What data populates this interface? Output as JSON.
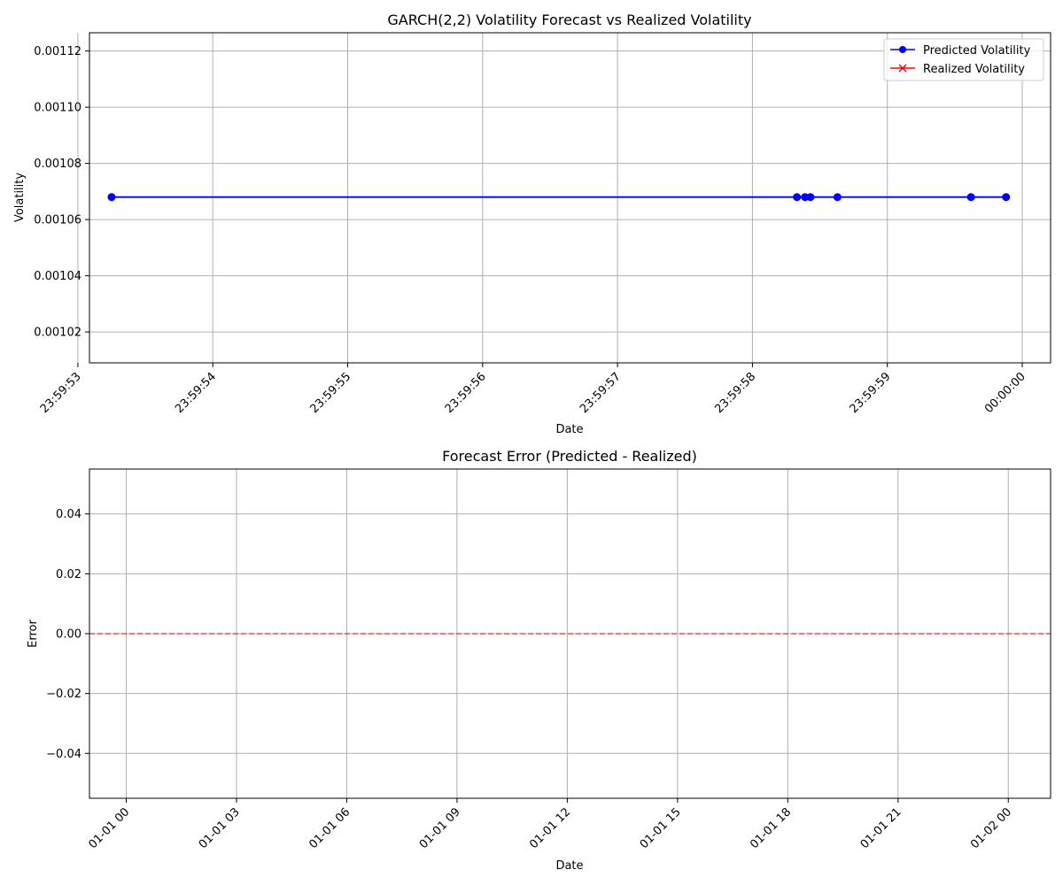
{
  "chart_data": [
    {
      "type": "line",
      "title": "GARCH(2,2) Volatility Forecast vs Realized Volatility",
      "xlabel": "Date",
      "ylabel": "Volatility",
      "xlim": [
        "23:59:53.086",
        "00:00:00.210"
      ],
      "ylim": [
        0.001009,
        0.0011265
      ],
      "x_tick_labels": [
        "23:59:53",
        "23:59:54",
        "23:59:55",
        "23:59:56",
        "23:59:57",
        "23:59:58",
        "23:59:59",
        "00:00:00"
      ],
      "y_ticks": [
        0.00102,
        0.00104,
        0.00106,
        0.00108,
        0.0011,
        0.00112
      ],
      "y_tick_labels": [
        "0.00102",
        "0.00104",
        "0.00106",
        "0.00108",
        "0.00110",
        "0.00112"
      ],
      "grid": true,
      "legend": "top-right",
      "series": [
        {
          "name": "Predicted Volatility",
          "color": "#0000ff",
          "marker": "o",
          "x": [
            "23:59:53.25",
            "23:59:58.33",
            "23:59:58.39",
            "23:59:58.43",
            "23:59:58.63",
            "23:59:59.62",
            "23:59:59.88"
          ],
          "values": [
            0.001068,
            0.001068,
            0.001068,
            0.001068,
            0.001068,
            0.001068,
            0.001068
          ]
        },
        {
          "name": "Realized Volatility",
          "color": "#ff0000",
          "marker": "x",
          "x": [],
          "values": []
        }
      ]
    },
    {
      "type": "line",
      "title": "Forecast Error (Predicted - Realized)",
      "xlabel": "Date",
      "ylabel": "Error",
      "xlim": [
        "01-01 00:00",
        "01-02 00:00"
      ],
      "ylim": [
        -0.055,
        0.055
      ],
      "x_tick_labels": [
        "01-01 00",
        "01-01 03",
        "01-01 06",
        "01-01 09",
        "01-01 12",
        "01-01 15",
        "01-01 18",
        "01-01 21",
        "01-02 00"
      ],
      "y_ticks": [
        -0.04,
        -0.02,
        0.0,
        0.02,
        0.04
      ],
      "y_tick_labels": [
        "−0.04",
        "−0.02",
        "0.00",
        "0.02",
        "0.04"
      ],
      "grid": true,
      "reference_line": {
        "y": 0,
        "color": "#ff0000",
        "style": "dashed"
      },
      "series": []
    }
  ]
}
